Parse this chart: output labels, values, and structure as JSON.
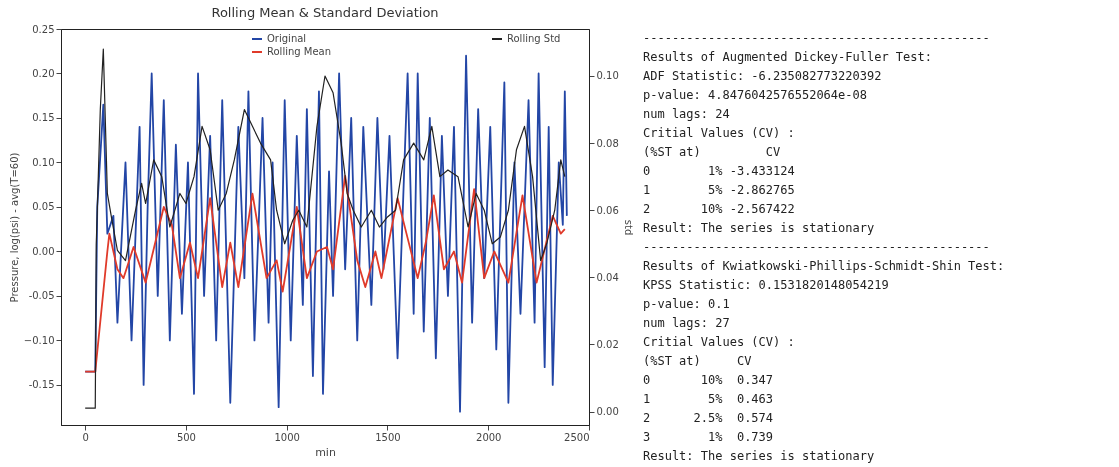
{
  "chart_data": [
    {
      "type": "line",
      "title": "Rolling Mean & Standard Deviation",
      "xlabel": "min",
      "ylabel": "Pressure, log(psi) - avg(T=60)",
      "y2label": "std",
      "legend": "top",
      "xlim": [
        -120,
        2500
      ],
      "xticks": [
        0,
        500,
        1000,
        1500,
        2000,
        2500
      ],
      "ylim": [
        -0.195,
        0.25
      ],
      "yticks": [
        -0.15,
        {
          "value": -0.1,
          "label": "−0.10"
        },
        -0.05,
        {
          "value": 0,
          "label": "0.00"
        },
        0.05,
        {
          "value": 0.1,
          "label": "0.10"
        },
        0.15,
        {
          "value": 0.2,
          "label": "0.20"
        },
        0.25
      ],
      "y2lim": [
        -0.004,
        0.114
      ],
      "y2ticks": [
        {
          "value": 0,
          "label": "0.00"
        },
        0.02,
        0.04,
        0.06,
        0.08,
        {
          "value": 0.1,
          "label": "0.10"
        }
      ],
      "series": [
        {
          "name": "Original",
          "color": "#2346a6",
          "x": [
            0,
            50,
            60,
            90,
            110,
            140,
            160,
            200,
            230,
            270,
            290,
            310,
            330,
            360,
            390,
            420,
            450,
            480,
            510,
            540,
            560,
            590,
            620,
            650,
            680,
            720,
            760,
            790,
            810,
            840,
            880,
            910,
            930,
            960,
            990,
            1020,
            1050,
            1080,
            1100,
            1130,
            1160,
            1180,
            1210,
            1230,
            1260,
            1290,
            1320,
            1350,
            1380,
            1420,
            1450,
            1480,
            1510,
            1550,
            1600,
            1630,
            1650,
            1680,
            1710,
            1740,
            1770,
            1800,
            1830,
            1860,
            1890,
            1920,
            1950,
            1980,
            2010,
            2040,
            2080,
            2100,
            2130,
            2160,
            2200,
            2230,
            2250,
            2280,
            2300,
            2320,
            2350,
            2370,
            2380,
            2390
          ],
          "values": [
            -0.135,
            -0.135,
            0.05,
            0.165,
            0.02,
            0.04,
            -0.08,
            0.1,
            -0.1,
            0.14,
            -0.15,
            0.05,
            0.2,
            -0.05,
            0.17,
            -0.1,
            0.12,
            -0.07,
            0.1,
            -0.16,
            0.2,
            -0.05,
            0.13,
            -0.1,
            0.17,
            -0.17,
            0.14,
            -0.03,
            0.18,
            -0.1,
            0.15,
            -0.08,
            0.1,
            -0.175,
            0.17,
            -0.1,
            0.13,
            -0.06,
            0.16,
            -0.14,
            0.18,
            -0.16,
            0.09,
            -0.05,
            0.2,
            -0.02,
            0.15,
            -0.1,
            0.14,
            -0.06,
            0.15,
            -0.02,
            0.13,
            -0.12,
            0.2,
            -0.07,
            0.2,
            -0.09,
            0.15,
            -0.12,
            0.13,
            -0.05,
            0.14,
            -0.18,
            0.22,
            -0.08,
            0.16,
            -0.03,
            0.14,
            -0.11,
            0.19,
            -0.17,
            0.1,
            -0.07,
            0.17,
            -0.08,
            0.2,
            -0.13,
            0.14,
            -0.15,
            0.1,
            0.03,
            0.18,
            0.04
          ]
        },
        {
          "name": "Rolling Mean",
          "color": "#e03a2a",
          "x": [
            0,
            50,
            110,
            120,
            160,
            190,
            240,
            300,
            390,
            430,
            470,
            520,
            560,
            620,
            680,
            720,
            760,
            830,
            900,
            950,
            980,
            1050,
            1100,
            1150,
            1200,
            1230,
            1290,
            1350,
            1390,
            1440,
            1470,
            1550,
            1600,
            1650,
            1690,
            1730,
            1780,
            1830,
            1870,
            1930,
            1980,
            2030,
            2100,
            2170,
            2240,
            2320,
            2360,
            2380
          ],
          "values": [
            -0.135,
            -0.135,
            0,
            0.02,
            -0.02,
            -0.03,
            0.005,
            -0.035,
            0.05,
            0.03,
            -0.03,
            0.01,
            -0.03,
            0.06,
            -0.04,
            0.01,
            -0.04,
            0.065,
            -0.03,
            -0.01,
            -0.045,
            0.05,
            -0.03,
            0,
            0.005,
            -0.02,
            0.085,
            -0.01,
            -0.04,
            0,
            -0.03,
            0.06,
            0.015,
            -0.03,
            0.01,
            0.063,
            -0.02,
            0,
            -0.035,
            0.07,
            -0.03,
            0,
            -0.035,
            0.063,
            -0.035,
            0.04,
            0.02,
            0.025
          ]
        },
        {
          "name": "Rolling Std",
          "color": "#222222",
          "axis": "y2",
          "x": [
            0,
            50,
            55,
            75,
            90,
            110,
            130,
            160,
            200,
            250,
            280,
            300,
            340,
            380,
            420,
            470,
            500,
            540,
            580,
            620,
            660,
            700,
            740,
            790,
            830,
            870,
            920,
            950,
            990,
            1030,
            1060,
            1100,
            1150,
            1190,
            1230,
            1270,
            1300,
            1330,
            1370,
            1420,
            1460,
            1500,
            1540,
            1580,
            1630,
            1680,
            1720,
            1760,
            1800,
            1850,
            1900,
            1940,
            1980,
            2020,
            2060,
            2100,
            2140,
            2180,
            2220,
            2260,
            2290,
            2330,
            2360,
            2380
          ],
          "values": [
            0.001,
            0.001,
            0.05,
            0.09,
            0.108,
            0.065,
            0.058,
            0.048,
            0.045,
            0.06,
            0.068,
            0.062,
            0.075,
            0.07,
            0.055,
            0.065,
            0.062,
            0.07,
            0.085,
            0.078,
            0.06,
            0.065,
            0.075,
            0.09,
            0.085,
            0.08,
            0.075,
            0.06,
            0.05,
            0.057,
            0.06,
            0.055,
            0.085,
            0.1,
            0.095,
            0.08,
            0.065,
            0.06,
            0.055,
            0.06,
            0.055,
            0.058,
            0.06,
            0.075,
            0.08,
            0.075,
            0.085,
            0.07,
            0.072,
            0.07,
            0.055,
            0.065,
            0.06,
            0.05,
            0.052,
            0.06,
            0.078,
            0.085,
            0.07,
            0.045,
            0.05,
            0.06,
            0.075,
            0.07
          ]
        }
      ]
    },
    {
      "type": "other",
      "annotations": [
        "------------------------------------------------",
        "Results of Augmented Dickey-Fuller Test:",
        "ADF Statistic: -6.235082773220392",
        "p-value: 4.8476042576552064e-08",
        "num lags: 24",
        "Critial Values (CV) :",
        "  (%ST at)         CV",
        "0        1% -3.433124",
        "1        5% -2.862765",
        "2       10% -2.567422",
        "Result: The series is stationary",
        "------------------------------------------------",
        "Results of Kwiatkowski-Phillips-Schmidt-Shin Test:",
        "KPSS Statistic: 0.1531820148054219",
        "p-value: 0.1",
        "num lags: 27",
        "Critial Values (CV) :",
        "  (%ST at)     CV",
        "0       10%  0.347",
        "1        5%  0.463",
        "2      2.5%  0.574",
        "3        1%  0.739",
        "Result: The series is stationary"
      ]
    }
  ]
}
